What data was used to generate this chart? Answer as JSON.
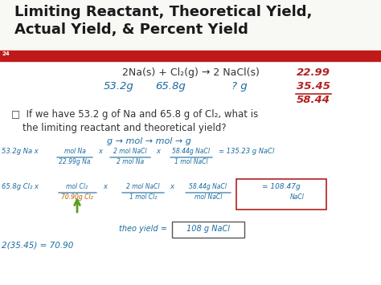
{
  "bg_color": "#f0f0ec",
  "slide_num": "24",
  "title_line1": "Limiting Reactant, Theoretical Yield,",
  "title_line2": "Actual Yield, & Percent Yield",
  "title_color": "#1a1a1a",
  "bar_color": "#c0191a",
  "handwritten_color": "#1a6b9e",
  "handwritten_color2": "#b22020",
  "green_color": "#5a9e20",
  "orange_color": "#b85c00"
}
